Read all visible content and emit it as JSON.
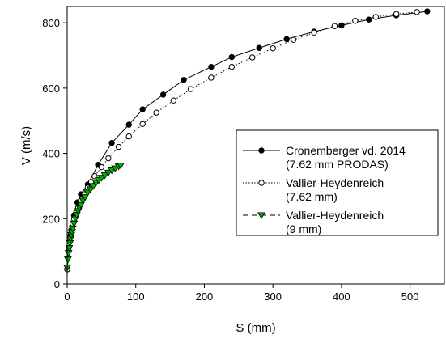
{
  "chart_data": {
    "type": "line",
    "xlabel": "S (mm)",
    "ylabel": "V (m/s)",
    "xlim": [
      0,
      550
    ],
    "ylim": [
      0,
      850
    ],
    "xticks": [
      0,
      100,
      200,
      300,
      400,
      500
    ],
    "yticks": [
      0,
      200,
      400,
      600,
      800
    ],
    "grid": false,
    "legend_position": "center-right",
    "series": [
      {
        "name": "Cronemberger vd. 2014\n(7.62 mm PRODAS)",
        "legend_lines": [
          "Cronemberger vd. 2014",
          "(7.62 mm PRODAS)"
        ],
        "line_style": "solid",
        "marker": "circle-filled",
        "color": "#000000",
        "x": [
          0,
          5,
          10,
          15,
          20,
          30,
          45,
          65,
          90,
          110,
          140,
          170,
          210,
          240,
          280,
          320,
          360,
          400,
          440,
          480,
          525
        ],
        "y": [
          45,
          150,
          210,
          250,
          275,
          305,
          365,
          432,
          488,
          535,
          580,
          625,
          665,
          695,
          723,
          750,
          773,
          792,
          810,
          823,
          835
        ]
      },
      {
        "name": "Vallier-Heydenreich\n(7.62 mm)",
        "legend_lines": [
          "Vallier-Heydenreich",
          "(7.62 mm)"
        ],
        "line_style": "dotted",
        "marker": "circle-open",
        "color": "#000000",
        "x": [
          0,
          2,
          4,
          6,
          8,
          10,
          13,
          16,
          20,
          25,
          30,
          35,
          40,
          50,
          60,
          75,
          90,
          110,
          130,
          155,
          180,
          210,
          240,
          270,
          300,
          330,
          360,
          390,
          420,
          450,
          480,
          510
        ],
        "y": [
          45,
          110,
          140,
          165,
          185,
          200,
          218,
          235,
          255,
          275,
          295,
          313,
          330,
          358,
          385,
          420,
          452,
          490,
          525,
          562,
          597,
          632,
          665,
          694,
          722,
          748,
          770,
          790,
          806,
          818,
          827,
          833
        ]
      },
      {
        "name": "Vallier-Heydenreich\n(9 mm)",
        "legend_lines": [
          "Vallier-Heydenreich",
          "(9 mm)"
        ],
        "line_style": "dashed",
        "marker": "triangle-down-filled",
        "color": "#00b000",
        "x": [
          0,
          1,
          2,
          3,
          4,
          5,
          6,
          7,
          8,
          10,
          12,
          14,
          16,
          18,
          20,
          23,
          26,
          30,
          34,
          38,
          42,
          46,
          50,
          55,
          60,
          65,
          70,
          75,
          78
        ],
        "y": [
          50,
          75,
          95,
          110,
          125,
          138,
          150,
          160,
          170,
          185,
          200,
          212,
          223,
          233,
          242,
          255,
          266,
          280,
          290,
          300,
          310,
          318,
          325,
          333,
          341,
          348,
          354,
          360,
          363
        ]
      }
    ]
  }
}
